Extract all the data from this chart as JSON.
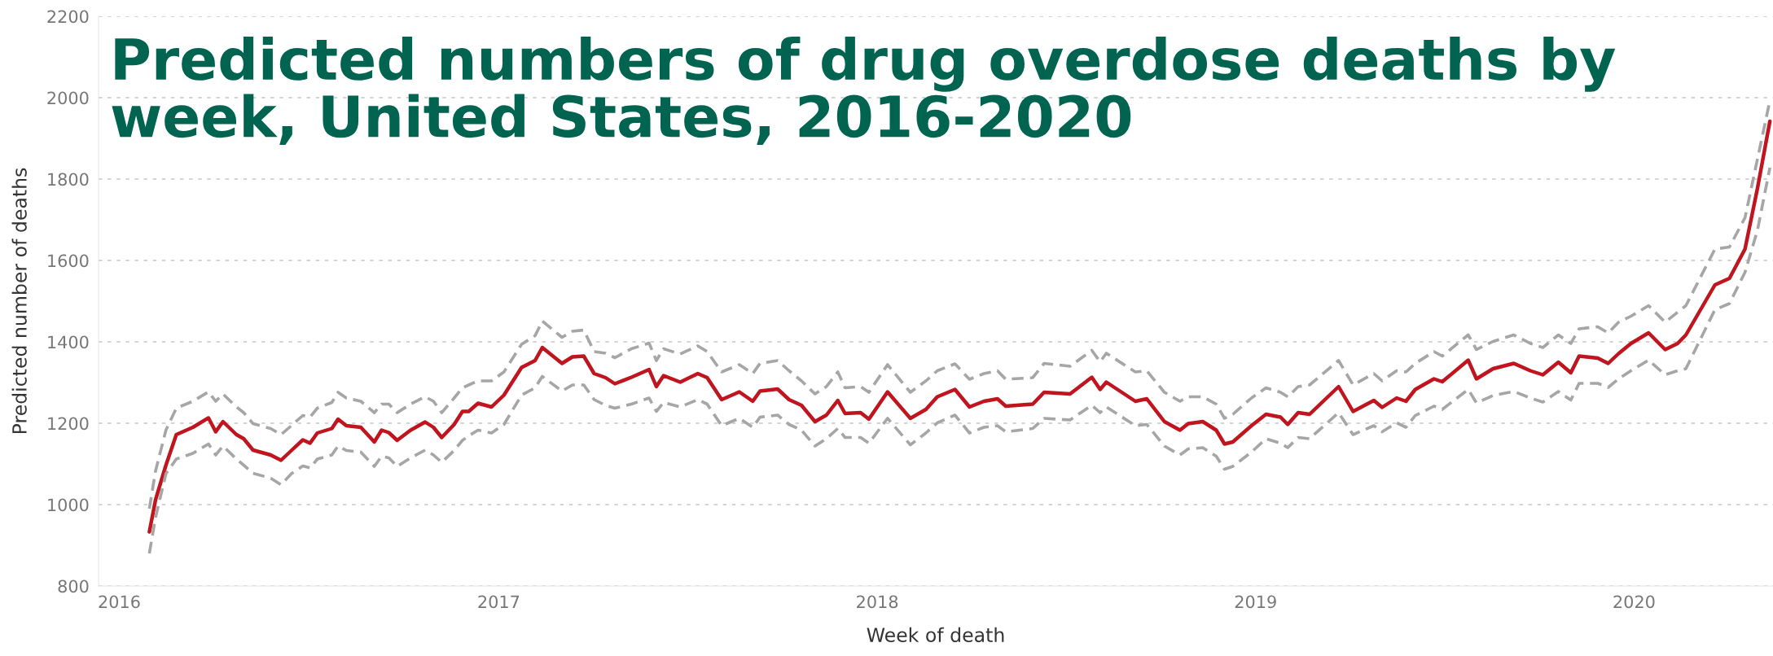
{
  "chart_data": {
    "type": "line",
    "title": "Predicted numbers of drug overdose deaths by week, United States, 2016-2020",
    "xlabel": "Week of death",
    "ylabel": "Predicted number of deaths",
    "x": [
      "2016-01-30",
      "2016-02-05",
      "2016-02-15",
      "2016-02-25",
      "2016-03-12",
      "2016-03-27",
      "2016-04-03",
      "2016-04-10",
      "2016-04-23",
      "2016-04-30",
      "2016-05-09",
      "2016-05-26",
      "2016-06-05",
      "2016-06-15",
      "2016-06-26",
      "2016-07-03",
      "2016-07-10",
      "2016-07-24",
      "2016-07-30",
      "2016-08-07",
      "2016-08-21",
      "2016-09-03",
      "2016-09-10",
      "2016-09-17",
      "2016-09-25",
      "2016-10-08",
      "2016-10-22",
      "2016-10-30",
      "2016-11-07",
      "2016-11-19",
      "2016-11-27",
      "2016-12-03",
      "2016-12-12",
      "2016-12-25",
      "2017-01-06",
      "2017-01-23",
      "2017-02-05",
      "2017-02-12",
      "2017-03-03",
      "2017-03-13",
      "2017-03-24",
      "2017-04-03",
      "2017-04-14",
      "2017-04-23",
      "2017-05-09",
      "2017-05-26",
      "2017-06-02",
      "2017-06-09",
      "2017-06-25",
      "2017-07-12",
      "2017-07-21",
      "2017-08-04",
      "2017-08-21",
      "2017-09-03",
      "2017-09-10",
      "2017-09-27",
      "2017-10-08",
      "2017-10-20",
      "2017-11-02",
      "2017-11-13",
      "2017-11-24",
      "2017-12-01",
      "2017-12-16",
      "2017-12-24",
      "2018-01-11",
      "2018-02-02",
      "2018-02-17",
      "2018-02-28",
      "2018-03-17",
      "2018-03-31",
      "2018-04-14",
      "2018-04-27",
      "2018-05-05",
      "2018-05-31",
      "2018-06-11",
      "2018-07-06",
      "2018-07-27",
      "2018-08-04",
      "2018-08-10",
      "2018-09-07",
      "2018-09-18",
      "2018-10-05",
      "2018-10-20",
      "2018-10-28",
      "2018-11-11",
      "2018-11-24",
      "2018-12-02",
      "2018-12-10",
      "2018-12-28",
      "2019-01-11",
      "2019-01-25",
      "2019-02-01",
      "2019-02-11",
      "2019-02-22",
      "2019-03-22",
      "2019-04-05",
      "2019-04-25",
      "2019-05-03",
      "2019-05-17",
      "2019-05-26",
      "2019-06-04",
      "2019-06-22",
      "2019-06-30",
      "2019-07-25",
      "2019-08-02",
      "2019-08-18",
      "2019-09-07",
      "2019-09-23",
      "2019-10-05",
      "2019-10-20",
      "2019-11-01",
      "2019-11-09",
      "2019-11-27",
      "2019-12-07",
      "2019-12-17",
      "2019-12-29",
      "2020-01-15",
      "2020-01-31",
      "2020-02-12",
      "2020-02-20",
      "2020-03-19",
      "2020-04-02",
      "2020-04-17",
      "2020-04-29",
      "2020-05-11"
    ],
    "series": [
      {
        "color": "#c0141e",
        "line_style": "solid",
        "values": [
          933,
          1012,
          1097,
          1172,
          1190,
          1213,
          1179,
          1204,
          1172,
          1162,
          1134,
          1122,
          1109,
          1133,
          1159,
          1151,
          1176,
          1187,
          1210,
          1194,
          1190,
          1154,
          1183,
          1177,
          1158,
          1183,
          1203,
          1190,
          1165,
          1197,
          1229,
          1229,
          1249,
          1240,
          1269,
          1337,
          1354,
          1386,
          1347,
          1363,
          1365,
          1322,
          1312,
          1297,
          1313,
          1332,
          1290,
          1317,
          1301,
          1322,
          1312,
          1258,
          1277,
          1254,
          1279,
          1284,
          1258,
          1244,
          1204,
          1220,
          1256,
          1224,
          1226,
          1210,
          1277,
          1212,
          1234,
          1265,
          1283,
          1240,
          1254,
          1260,
          1242,
          1247,
          1276,
          1272,
          1313,
          1283,
          1301,
          1254,
          1260,
          1204,
          1183,
          1199,
          1204,
          1183,
          1149,
          1154,
          1194,
          1222,
          1215,
          1197,
          1226,
          1222,
          1290,
          1229,
          1256,
          1239,
          1262,
          1254,
          1283,
          1309,
          1302,
          1355,
          1309,
          1334,
          1347,
          1329,
          1319,
          1350,
          1324,
          1365,
          1360,
          1347,
          1371,
          1396,
          1422,
          1381,
          1396,
          1417,
          1540,
          1556,
          1628,
          1777,
          1942
        ]
      },
      {
        "color": "#a6a6a6",
        "line_style": "dashed",
        "values": [
          990,
          1083,
          1183,
          1237,
          1254,
          1277,
          1254,
          1272,
          1240,
          1226,
          1199,
          1187,
          1172,
          1194,
          1219,
          1215,
          1237,
          1251,
          1276,
          1262,
          1254,
          1226,
          1247,
          1247,
          1226,
          1247,
          1265,
          1254,
          1226,
          1262,
          1287,
          1294,
          1304,
          1304,
          1326,
          1394,
          1415,
          1451,
          1411,
          1426,
          1429,
          1376,
          1372,
          1361,
          1383,
          1397,
          1354,
          1383,
          1370,
          1390,
          1376,
          1326,
          1344,
          1322,
          1347,
          1354,
          1329,
          1304,
          1272,
          1290,
          1326,
          1287,
          1290,
          1276,
          1344,
          1276,
          1304,
          1329,
          1346,
          1308,
          1322,
          1329,
          1308,
          1312,
          1347,
          1340,
          1379,
          1351,
          1372,
          1326,
          1329,
          1276,
          1254,
          1265,
          1265,
          1247,
          1212,
          1222,
          1262,
          1287,
          1276,
          1265,
          1290,
          1294,
          1354,
          1294,
          1322,
          1304,
          1329,
          1326,
          1347,
          1376,
          1365,
          1417,
          1381,
          1401,
          1417,
          1396,
          1386,
          1417,
          1396,
          1432,
          1437,
          1422,
          1448,
          1463,
          1489,
          1448,
          1473,
          1489,
          1628,
          1633,
          1705,
          1849,
          1993
        ]
      },
      {
        "color": "#a6a6a6",
        "line_style": "dashed",
        "values": [
          880,
          969,
          1076,
          1112,
          1126,
          1149,
          1122,
          1144,
          1112,
          1097,
          1077,
          1065,
          1049,
          1076,
          1095,
          1090,
          1112,
          1122,
          1144,
          1133,
          1129,
          1094,
          1119,
          1115,
          1094,
          1115,
          1134,
          1122,
          1104,
          1133,
          1158,
          1169,
          1183,
          1176,
          1197,
          1269,
          1287,
          1315,
          1279,
          1294,
          1294,
          1258,
          1244,
          1237,
          1247,
          1262,
          1229,
          1251,
          1240,
          1258,
          1247,
          1194,
          1212,
          1190,
          1215,
          1220,
          1197,
          1183,
          1144,
          1162,
          1187,
          1165,
          1165,
          1151,
          1212,
          1147,
          1176,
          1201,
          1220,
          1176,
          1190,
          1194,
          1179,
          1187,
          1212,
          1208,
          1244,
          1226,
          1240,
          1194,
          1197,
          1144,
          1122,
          1137,
          1140,
          1119,
          1087,
          1094,
          1129,
          1162,
          1151,
          1140,
          1165,
          1162,
          1226,
          1172,
          1194,
          1179,
          1201,
          1190,
          1219,
          1242,
          1234,
          1283,
          1250,
          1268,
          1278,
          1262,
          1252,
          1278,
          1257,
          1298,
          1298,
          1288,
          1309,
          1329,
          1355,
          1319,
          1329,
          1334,
          1479,
          1494,
          1571,
          1674,
          1828
        ]
      }
    ],
    "xlim": [
      "2015-12-12",
      "2020-05-14"
    ],
    "ylim": [
      800,
      2200
    ],
    "xticks": [
      {
        "value": "2016-01-01",
        "label": "2016"
      },
      {
        "value": "2017-01-01",
        "label": "2017"
      },
      {
        "value": "2018-01-01",
        "label": "2018"
      },
      {
        "value": "2019-01-01",
        "label": "2019"
      },
      {
        "value": "2020-01-01",
        "label": "2020"
      }
    ],
    "yticks": [
      800,
      1000,
      1200,
      1400,
      1600,
      1800,
      2000,
      2200
    ],
    "grid": "y",
    "legend": false
  }
}
